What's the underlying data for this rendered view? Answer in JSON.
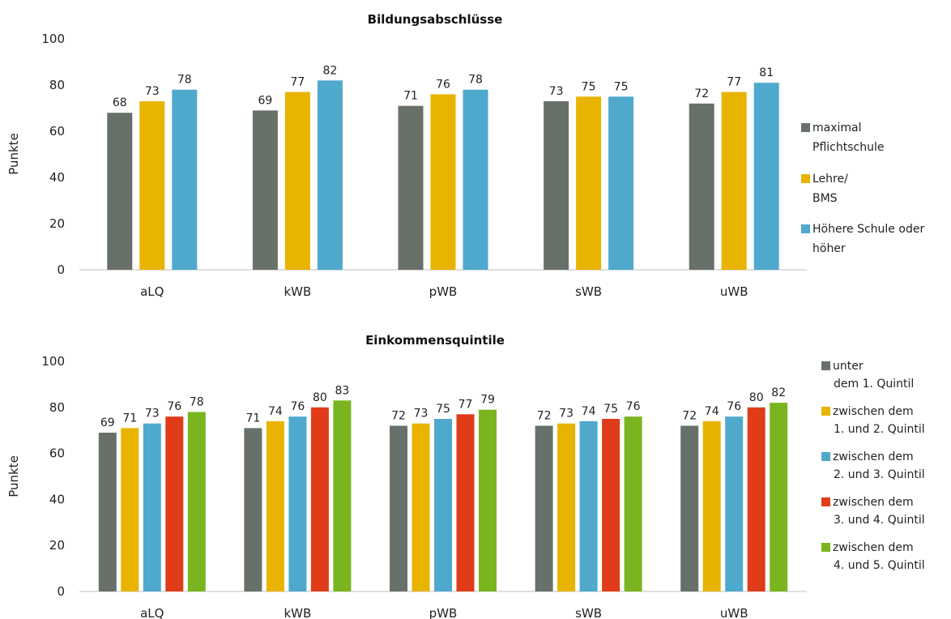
{
  "colors": {
    "grey": "#68706a",
    "yellow": "#e8b400",
    "blue": "#4fa9cc",
    "red": "#e03c1a",
    "green": "#7ab51f",
    "axis": "#bfbfbf"
  },
  "chart_data": [
    {
      "type": "bar",
      "title": "Bildungsabschlüsse",
      "ylabel": "Punkte",
      "xlabel": "",
      "categories": [
        "aLQ",
        "kWB",
        "pWB",
        "sWB",
        "uWB"
      ],
      "yticks": [
        "0",
        "20",
        "40",
        "60",
        "80",
        "100"
      ],
      "ylim": [
        0,
        100
      ],
      "grid": false,
      "legend_position": "right",
      "series": [
        {
          "name": "maximal Pflichtschule",
          "legend_lines": [
            "maximal",
            "Pflichtschule"
          ],
          "color": "#68706a",
          "values": [
            68,
            69,
            71,
            73,
            72
          ]
        },
        {
          "name": "Lehre/ BMS",
          "legend_lines": [
            "Lehre/",
            "BMS"
          ],
          "color": "#e8b400",
          "values": [
            73,
            77,
            76,
            75,
            77
          ]
        },
        {
          "name": "Höhere Schule oder höher",
          "legend_lines": [
            "Höhere Schule oder",
            "höher"
          ],
          "color": "#4fa9cc",
          "values": [
            78,
            82,
            78,
            75,
            81
          ]
        }
      ]
    },
    {
      "type": "bar",
      "title": "Einkommensquintile",
      "ylabel": "Punkte",
      "xlabel": "",
      "categories": [
        "aLQ",
        "kWB",
        "pWB",
        "sWB",
        "uWB"
      ],
      "yticks": [
        "0",
        "20",
        "40",
        "60",
        "80",
        "100"
      ],
      "ylim": [
        0,
        100
      ],
      "grid": false,
      "legend_position": "right",
      "series": [
        {
          "name": "unter dem 1. Quintil",
          "legend_lines": [
            "unter",
            "dem 1. Quintil"
          ],
          "color": "#68706a",
          "values": [
            69,
            71,
            72,
            72,
            72
          ]
        },
        {
          "name": "zwischen dem 1. und 2. Quintil",
          "legend_lines": [
            "zwischen dem",
            "1. und 2. Quintil"
          ],
          "color": "#e8b400",
          "values": [
            71,
            74,
            73,
            73,
            74
          ]
        },
        {
          "name": "zwischen dem 2. und 3. Quintil",
          "legend_lines": [
            "zwischen dem",
            "2. und 3. Quintil"
          ],
          "color": "#4fa9cc",
          "values": [
            73,
            76,
            75,
            74,
            76
          ]
        },
        {
          "name": "zwischen dem 3. und 4. Quintil",
          "legend_lines": [
            "zwischen dem",
            "3. und 4. Quintil"
          ],
          "color": "#e03c1a",
          "values": [
            76,
            80,
            77,
            75,
            80
          ]
        },
        {
          "name": "zwischen dem 4. und 5. Quintil",
          "legend_lines": [
            "zwischen dem",
            "4. und 5. Quintil"
          ],
          "color": "#7ab51f",
          "values": [
            78,
            83,
            79,
            76,
            82
          ]
        }
      ]
    }
  ]
}
